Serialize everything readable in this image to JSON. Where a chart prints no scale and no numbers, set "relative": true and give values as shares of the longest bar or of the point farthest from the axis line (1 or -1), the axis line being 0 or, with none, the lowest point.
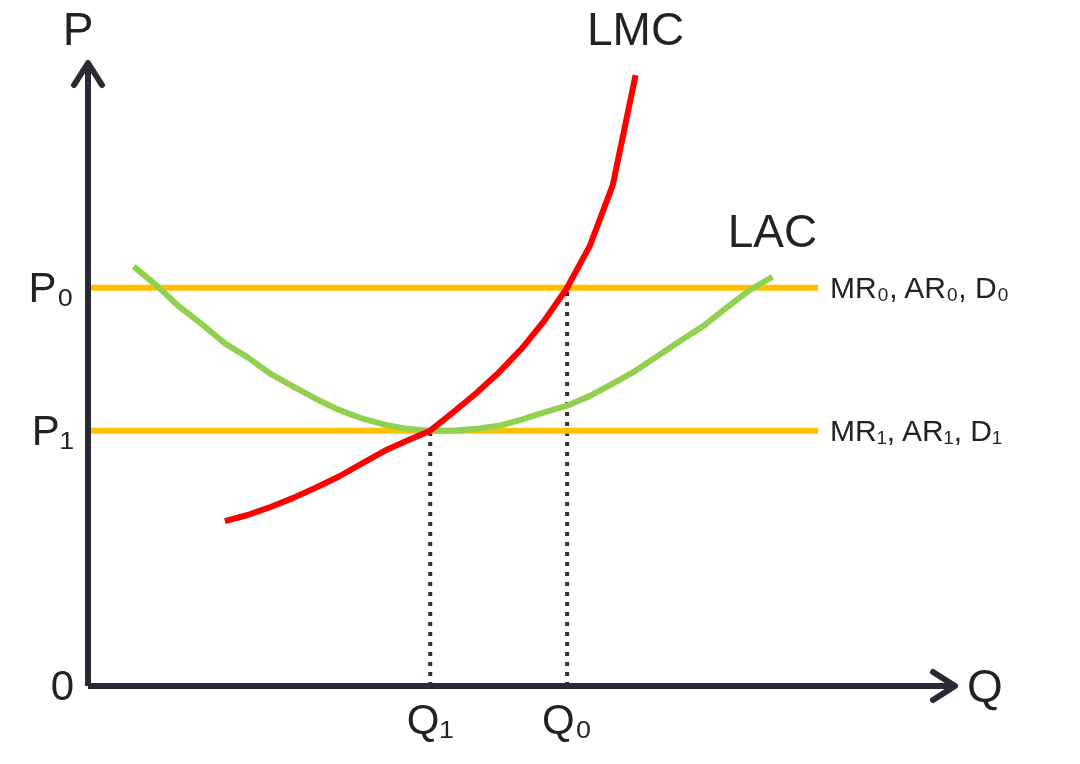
{
  "chart_data": {
    "type": "line",
    "xlabel": "Q",
    "ylabel": "P",
    "relative": true,
    "marker": "none",
    "line_style": "solid",
    "categories": [
      null,
      null,
      null,
      null,
      null,
      null,
      null,
      null,
      null,
      null,
      null,
      null,
      null,
      null,
      null,
      "Q₁",
      null,
      null,
      null,
      null,
      null,
      "Q₀",
      null,
      null,
      null,
      null,
      null,
      null,
      null,
      null,
      null,
      null,
      null,
      null,
      null,
      null,
      null,
      null,
      null
    ],
    "annotations": [
      "0",
      "P₀",
      "P₁"
    ],
    "ref_lines": [
      {
        "axis": "x",
        "value": "Q₁",
        "color": "#333333",
        "line_style": "dotted"
      },
      {
        "axis": "x",
        "value": "Q₀",
        "color": "#333333",
        "line_style": "dotted"
      }
    ],
    "series": [
      {
        "name": "MR₀, AR₀, D₀",
        "color": "#ffc000",
        "values": [
          0.652,
          0.652,
          0.652,
          0.652,
          0.652,
          0.652,
          0.652,
          0.652,
          0.652,
          0.652,
          0.652,
          0.652,
          0.652,
          0.652,
          0.652,
          0.652,
          0.652,
          0.652,
          0.652,
          0.652,
          0.652,
          0.652,
          0.652,
          0.652,
          0.652,
          0.652,
          0.652,
          0.652,
          0.652,
          0.652,
          0.652,
          0.652,
          0.652,
          null,
          null,
          null,
          null,
          null,
          null
        ]
      },
      {
        "name": "MR₁, AR₁, D₁",
        "color": "#ffc000",
        "values": [
          0.418,
          0.418,
          0.418,
          0.418,
          0.418,
          0.418,
          0.418,
          0.418,
          0.418,
          0.418,
          0.418,
          0.418,
          0.418,
          0.418,
          0.418,
          0.418,
          0.418,
          0.418,
          0.418,
          0.418,
          0.418,
          0.418,
          0.418,
          0.418,
          0.418,
          0.418,
          0.418,
          0.418,
          0.418,
          0.418,
          0.418,
          0.418,
          0.418,
          null,
          null,
          null,
          null,
          null,
          null
        ]
      },
      {
        "name": "LAC",
        "color": "#92d050",
        "values": [
          null,
          null,
          0.687,
          0.656,
          0.621,
          0.592,
          0.561,
          0.538,
          0.511,
          0.49,
          0.47,
          0.452,
          0.438,
          0.428,
          0.421,
          0.418,
          0.418,
          0.421,
          0.426,
          0.436,
          0.448,
          0.459,
          0.475,
          0.495,
          0.516,
          0.541,
          0.566,
          0.59,
          0.62,
          0.648,
          0.67,
          null,
          null,
          null,
          null,
          null,
          null,
          null,
          null
        ]
      },
      {
        "name": "LMC",
        "color": "#ff0000",
        "values": [
          null,
          null,
          null,
          null,
          null,
          null,
          0.27,
          0.28,
          0.293,
          0.308,
          0.325,
          0.343,
          0.364,
          0.385,
          0.402,
          0.418,
          0.448,
          0.479,
          0.513,
          0.552,
          0.598,
          0.652,
          0.721,
          0.82,
          1,
          null,
          null,
          null,
          null,
          null,
          null,
          null,
          null,
          null,
          null,
          null,
          null,
          null,
          null
        ]
      }
    ]
  }
}
